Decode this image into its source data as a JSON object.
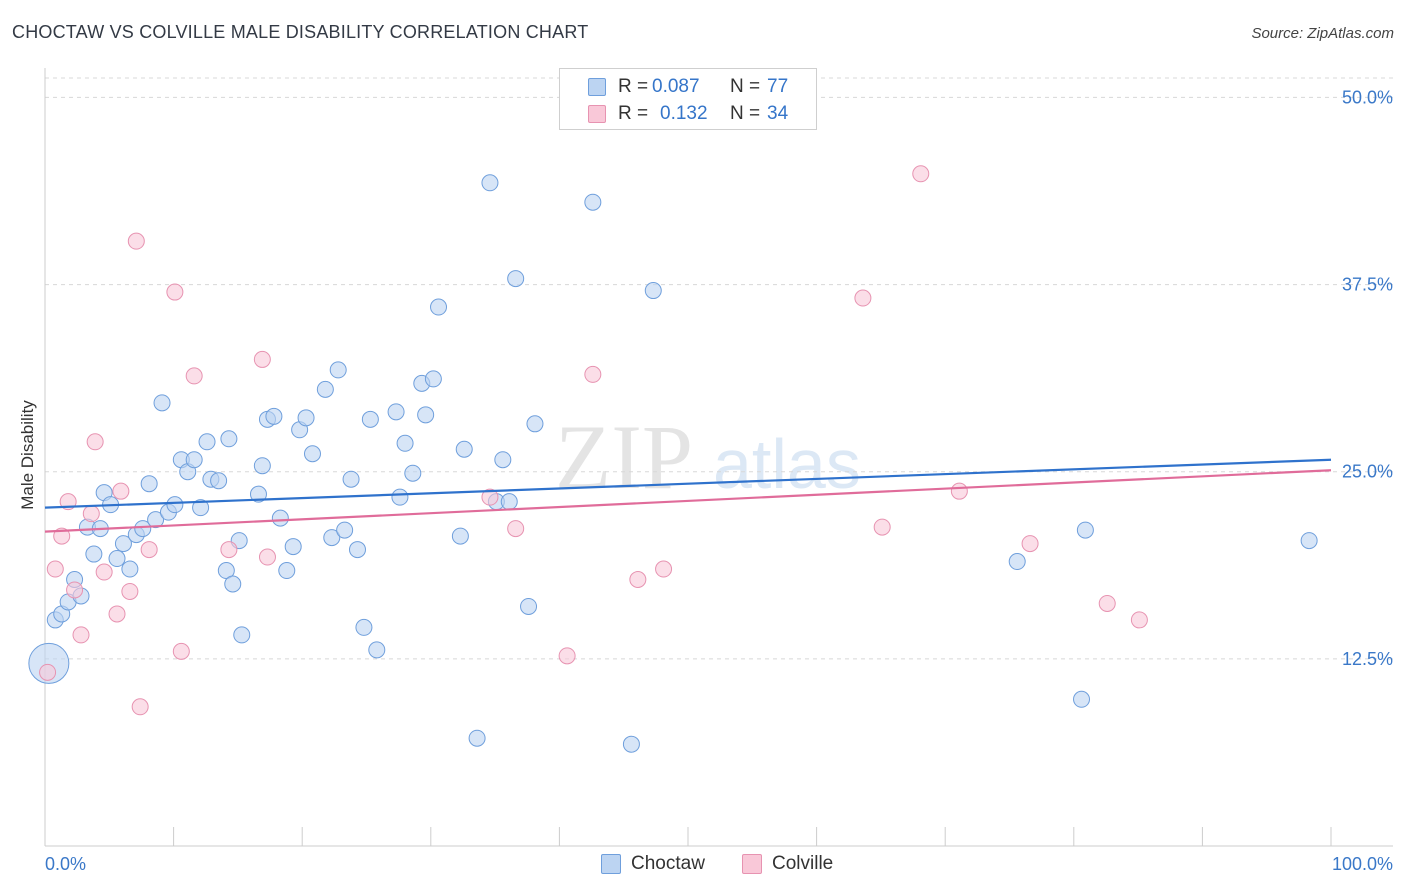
{
  "title": "CHOCTAW VS COLVILLE MALE DISABILITY CORRELATION CHART",
  "source": "Source: ZipAtlas.com",
  "watermark": {
    "zip": "ZIP",
    "atlas": "atlas"
  },
  "colors": {
    "blue_fill": "#bcd4f2",
    "blue_stroke": "#6f9fdc",
    "blue_line": "#2f72cc",
    "pink_fill": "#f9c8d8",
    "pink_stroke": "#e793b1",
    "pink_line": "#e06c9a",
    "axis_text": "#3a78c8",
    "grid": "#d8d8d8"
  },
  "legend": {
    "rows": [
      {
        "r_label": "R =",
        "r_value": "0.087",
        "n_label": "N =",
        "n_value": "77"
      },
      {
        "r_label": "R =",
        "r_value": "0.132",
        "n_label": "N =",
        "n_value": "34"
      }
    ],
    "bottom": [
      "Choctaw",
      "Colville"
    ]
  },
  "chart_data": {
    "type": "scatter",
    "title": "CHOCTAW VS COLVILLE MALE DISABILITY CORRELATION CHART",
    "xlabel": "",
    "ylabel": "Male Disability",
    "xlim": [
      0,
      100
    ],
    "ylim": [
      0,
      52.5
    ],
    "x_tick_labels": [
      "0.0%",
      "100.0%"
    ],
    "y_ticks": [
      12.5,
      25.0,
      37.5,
      50.0
    ],
    "y_tick_labels": [
      "12.5%",
      "25.0%",
      "37.5%",
      "50.0%"
    ],
    "grid": true,
    "series": [
      {
        "name": "Choctaw",
        "color": "blue",
        "trend": {
          "x": [
            0,
            100
          ],
          "y": [
            22.6,
            25.8
          ]
        },
        "points": [
          [
            0.3,
            12.2
          ],
          [
            0.8,
            15.1
          ],
          [
            1.3,
            15.5
          ],
          [
            1.8,
            16.3
          ],
          [
            2.3,
            17.8
          ],
          [
            2.8,
            16.7
          ],
          [
            3.3,
            21.3
          ],
          [
            3.8,
            19.5
          ],
          [
            4.3,
            21.2
          ],
          [
            4.6,
            23.6
          ],
          [
            5.1,
            22.8
          ],
          [
            5.6,
            19.2
          ],
          [
            6.1,
            20.2
          ],
          [
            6.6,
            18.5
          ],
          [
            7.1,
            20.8
          ],
          [
            7.6,
            21.2
          ],
          [
            8.1,
            24.2
          ],
          [
            8.6,
            21.8
          ],
          [
            9.1,
            29.6
          ],
          [
            9.6,
            22.3
          ],
          [
            10.1,
            22.8
          ],
          [
            10.6,
            25.8
          ],
          [
            11.1,
            25.0
          ],
          [
            11.6,
            25.8
          ],
          [
            12.1,
            22.6
          ],
          [
            12.6,
            27.0
          ],
          [
            12.9,
            24.5
          ],
          [
            13.5,
            24.4
          ],
          [
            14.1,
            18.4
          ],
          [
            14.3,
            27.2
          ],
          [
            14.6,
            17.5
          ],
          [
            15.1,
            20.4
          ],
          [
            15.3,
            14.1
          ],
          [
            16.6,
            23.5
          ],
          [
            16.9,
            25.4
          ],
          [
            17.3,
            28.5
          ],
          [
            17.8,
            28.7
          ],
          [
            18.3,
            21.9
          ],
          [
            18.8,
            18.4
          ],
          [
            19.3,
            20.0
          ],
          [
            19.8,
            27.8
          ],
          [
            20.3,
            28.6
          ],
          [
            20.8,
            26.2
          ],
          [
            21.8,
            30.5
          ],
          [
            22.3,
            20.6
          ],
          [
            22.8,
            31.8
          ],
          [
            23.3,
            21.1
          ],
          [
            23.8,
            24.5
          ],
          [
            24.3,
            19.8
          ],
          [
            24.8,
            14.6
          ],
          [
            25.3,
            28.5
          ],
          [
            25.8,
            13.1
          ],
          [
            27.3,
            29.0
          ],
          [
            27.6,
            23.3
          ],
          [
            28.0,
            26.9
          ],
          [
            28.6,
            24.9
          ],
          [
            29.3,
            30.9
          ],
          [
            29.6,
            28.8
          ],
          [
            30.2,
            31.2
          ],
          [
            30.6,
            36.0
          ],
          [
            32.3,
            20.7
          ],
          [
            32.6,
            26.5
          ],
          [
            33.6,
            7.2
          ],
          [
            34.6,
            44.3
          ],
          [
            35.1,
            23.0
          ],
          [
            35.6,
            25.8
          ],
          [
            36.1,
            23.0
          ],
          [
            36.6,
            37.9
          ],
          [
            37.6,
            16.0
          ],
          [
            38.1,
            28.2
          ],
          [
            42.6,
            43.0
          ],
          [
            45.6,
            6.8
          ],
          [
            47.3,
            37.1
          ],
          [
            75.6,
            19.0
          ],
          [
            80.6,
            9.8
          ],
          [
            80.9,
            21.1
          ],
          [
            98.3,
            20.4
          ]
        ]
      },
      {
        "name": "Colville",
        "color": "pink",
        "trend": {
          "x": [
            0,
            100
          ],
          "y": [
            21.0,
            25.1
          ]
        },
        "points": [
          [
            0.2,
            11.6
          ],
          [
            0.8,
            18.5
          ],
          [
            1.3,
            20.7
          ],
          [
            1.8,
            23.0
          ],
          [
            2.3,
            17.1
          ],
          [
            2.8,
            14.1
          ],
          [
            3.6,
            22.2
          ],
          [
            3.9,
            27.0
          ],
          [
            4.6,
            18.3
          ],
          [
            5.6,
            15.5
          ],
          [
            5.9,
            23.7
          ],
          [
            6.6,
            17.0
          ],
          [
            7.1,
            40.4
          ],
          [
            7.4,
            9.3
          ],
          [
            8.1,
            19.8
          ],
          [
            10.1,
            37.0
          ],
          [
            10.6,
            13.0
          ],
          [
            11.6,
            31.4
          ],
          [
            14.3,
            19.8
          ],
          [
            16.9,
            32.5
          ],
          [
            17.3,
            19.3
          ],
          [
            34.6,
            23.3
          ],
          [
            36.6,
            21.2
          ],
          [
            40.6,
            12.7
          ],
          [
            42.6,
            31.5
          ],
          [
            46.1,
            17.8
          ],
          [
            48.1,
            18.5
          ],
          [
            63.6,
            36.6
          ],
          [
            65.1,
            21.3
          ],
          [
            68.1,
            44.9
          ],
          [
            71.1,
            23.7
          ],
          [
            76.6,
            20.2
          ],
          [
            82.6,
            16.2
          ],
          [
            85.1,
            15.1
          ]
        ]
      }
    ]
  }
}
